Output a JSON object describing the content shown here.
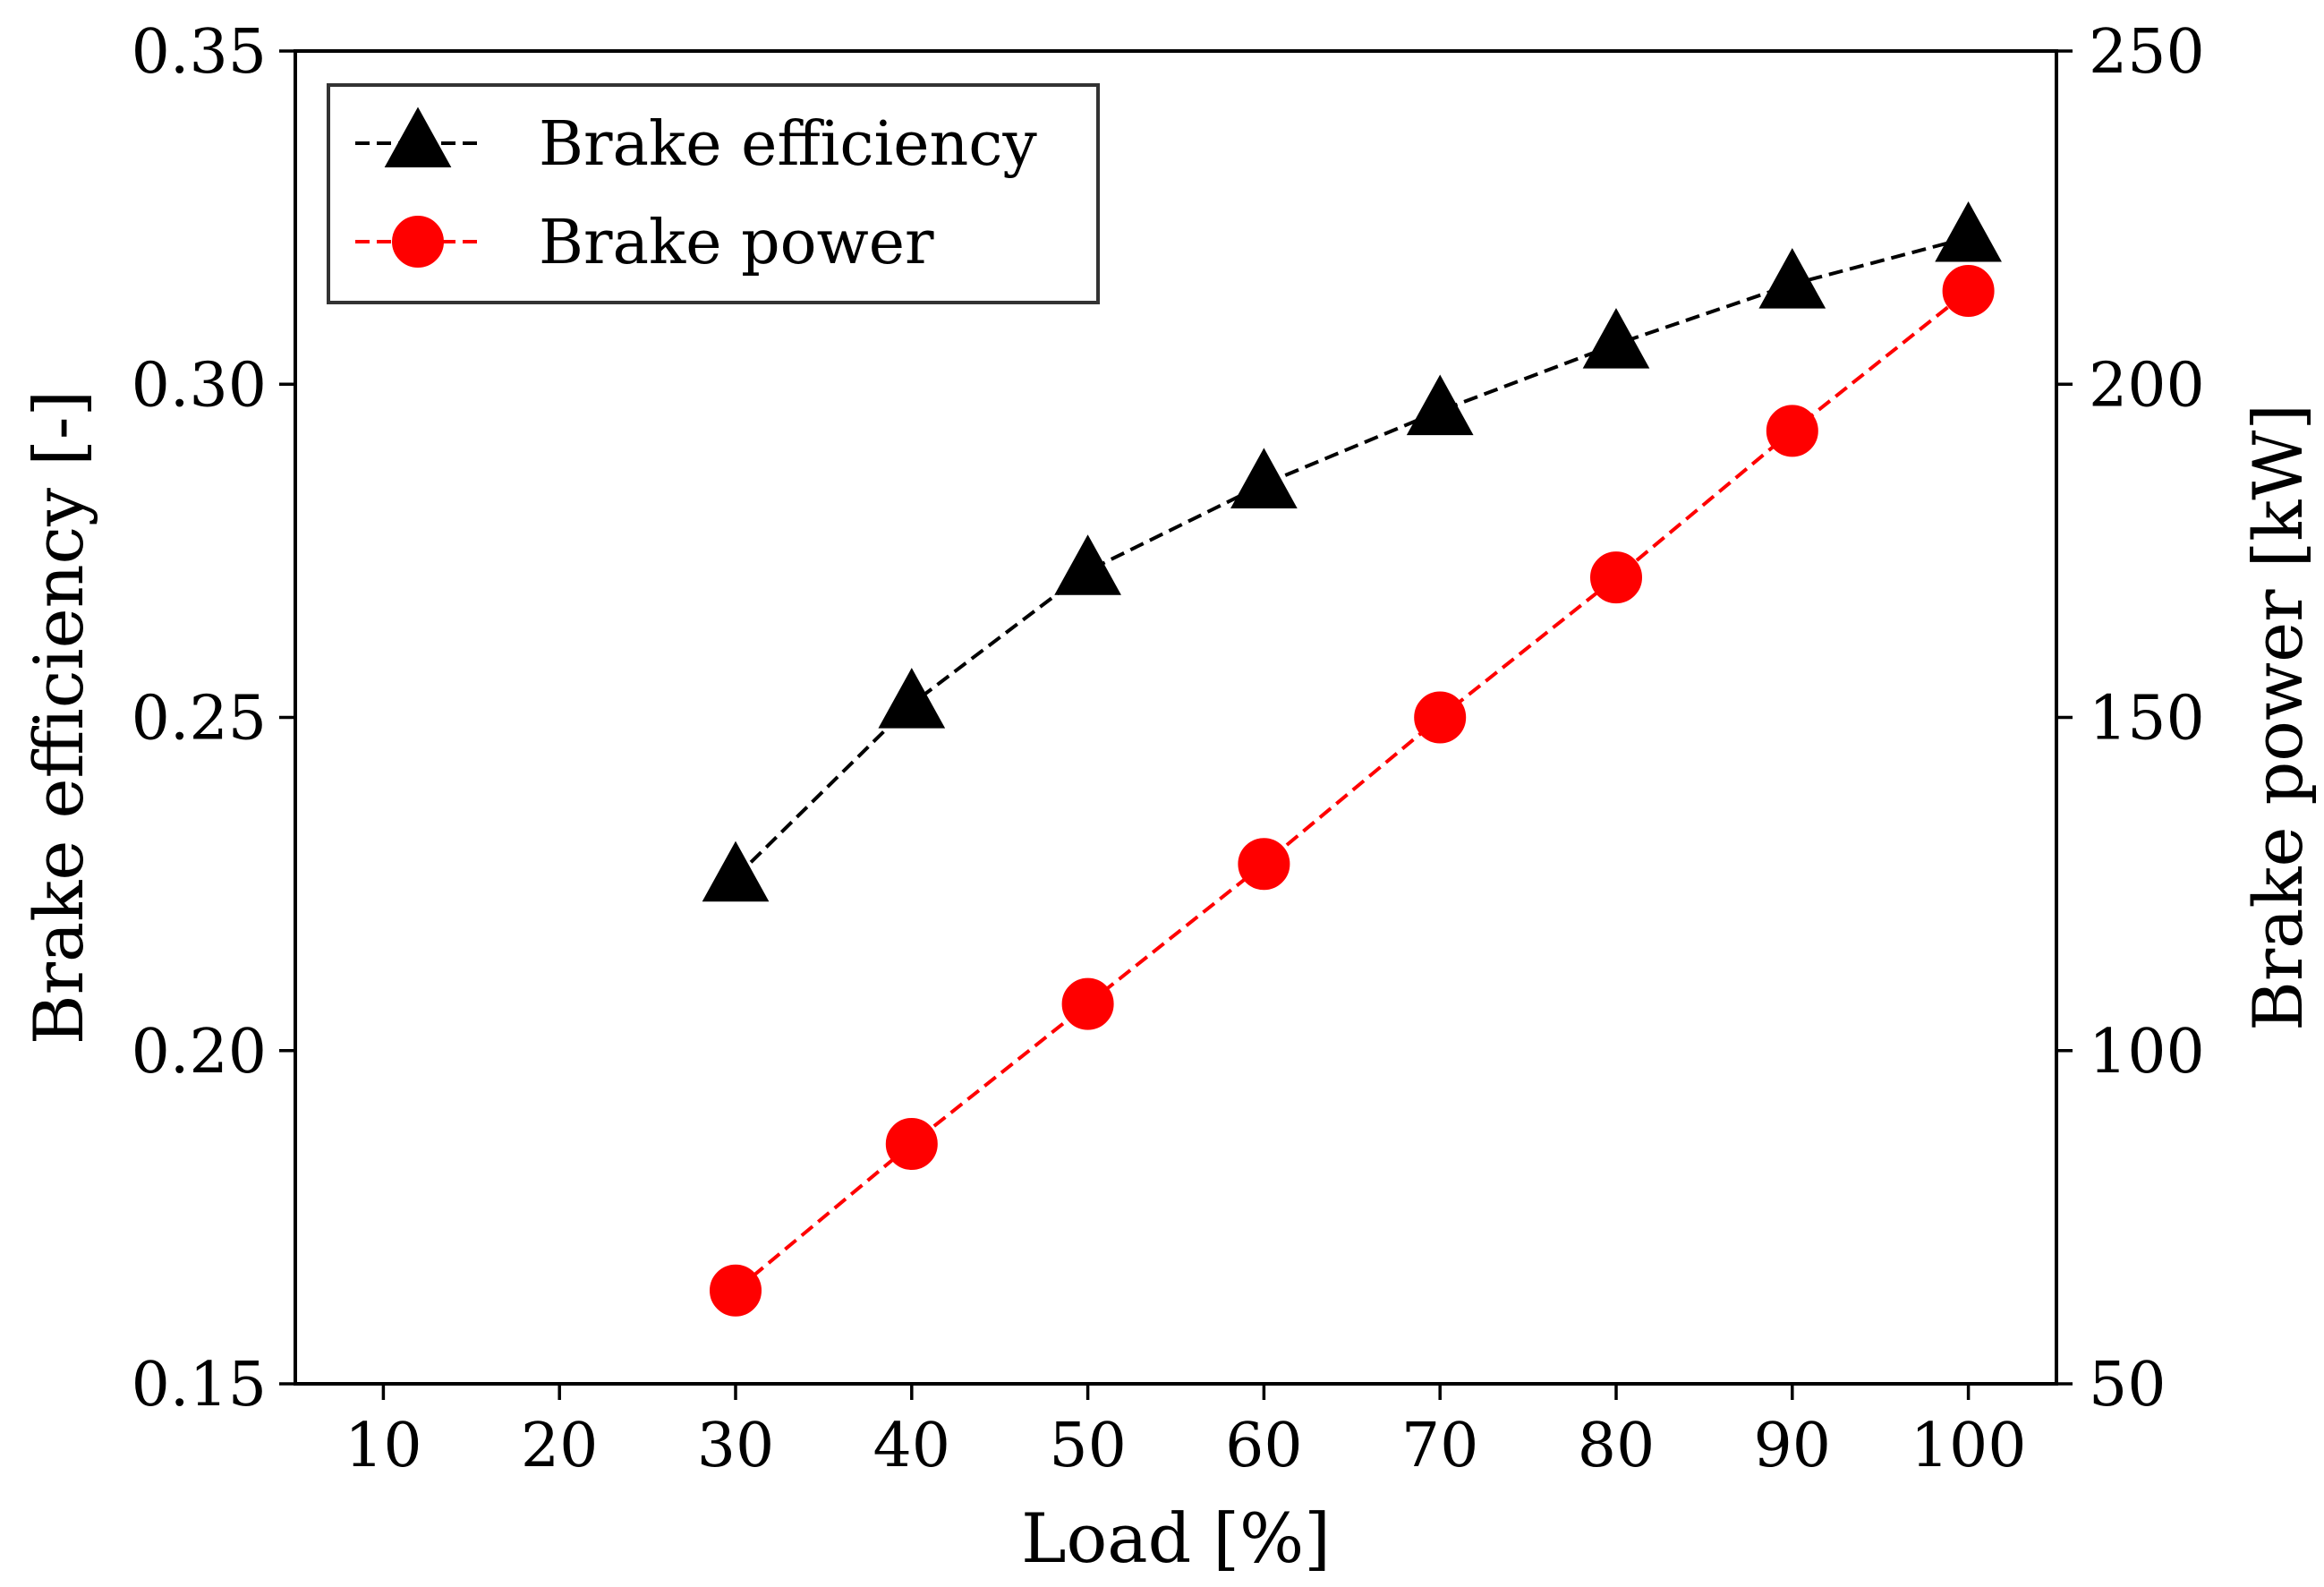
{
  "chart_data": {
    "type": "line",
    "xlabel": "Load [%]",
    "ylabel_left": "Brake efficiency [-]",
    "ylabel_right": "Brake power [kW]",
    "x_ticks": [
      "10",
      "20",
      "30",
      "40",
      "50",
      "60",
      "70",
      "80",
      "90",
      "100"
    ],
    "y_left_ticks": [
      "0.15",
      "0.20",
      "0.25",
      "0.30",
      "0.35"
    ],
    "y_right_ticks": [
      "50",
      "100",
      "150",
      "200",
      "250"
    ],
    "xlim": [
      5,
      105
    ],
    "ylim_left": [
      0.15,
      0.35
    ],
    "ylim_right": [
      50,
      250
    ],
    "grid": false,
    "legend_position": "top-left",
    "x": [
      30,
      40,
      50,
      60,
      70,
      80,
      90,
      100
    ],
    "series": [
      {
        "name": "Brake efficiency",
        "axis": "left",
        "marker": "triangle",
        "line_style": "dashed",
        "color": "#000000",
        "values": [
          0.226,
          0.252,
          0.272,
          0.285,
          0.296,
          0.306,
          0.315,
          0.322
        ]
      },
      {
        "name": "Brake power",
        "axis": "right",
        "marker": "circle",
        "line_style": "dashed",
        "color": "#ff0000",
        "values": [
          64,
          86,
          107,
          128,
          150,
          171,
          193,
          214
        ]
      }
    ]
  }
}
